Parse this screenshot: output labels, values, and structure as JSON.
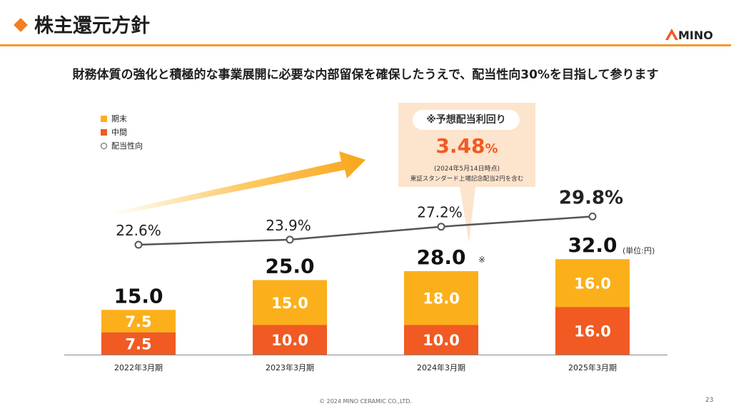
{
  "header": {
    "title": "株主還元方針",
    "logo_text": "MINO"
  },
  "subtitle": "財務体質の強化と積極的な事業展開に必要な内部留保を確保したうえで、配当性向30%を目指して参ります",
  "legend": {
    "final": "期末",
    "interim": "中間",
    "payout": "配当性向"
  },
  "callout": {
    "title": "※予想配当利回り",
    "value": "3.48",
    "value_unit": "%",
    "note_date": "(2024年5月14日時点)",
    "note_detail": "東証スタンダード上場記念配当2円を含む"
  },
  "unit_label": "(単位:円)",
  "colors": {
    "final": "#fbb01b",
    "interim": "#f15a22",
    "line": "#555555",
    "accent": "#f39a2d"
  },
  "chart_data": {
    "type": "bar",
    "stacked": true,
    "categories": [
      "2022年3月期",
      "2023年3月期",
      "2024年3月期",
      "2025年3月期"
    ],
    "series": [
      {
        "name": "中間",
        "values": [
          7.5,
          10.0,
          10.0,
          16.0
        ]
      },
      {
        "name": "期末",
        "values": [
          7.5,
          15.0,
          18.0,
          16.0
        ]
      }
    ],
    "totals": [
      "15.0",
      "25.0",
      "28.0",
      "32.0"
    ],
    "total_notes": [
      "",
      "",
      "※",
      ""
    ],
    "segment_labels": {
      "中間": [
        "7.5",
        "10.0",
        "10.0",
        "16.0"
      ],
      "期末": [
        "7.5",
        "15.0",
        "18.0",
        "16.0"
      ]
    },
    "line": {
      "name": "配当性向",
      "values": [
        22.6,
        23.9,
        27.2,
        29.8
      ],
      "labels": [
        "22.6%",
        "23.9%",
        "27.2%",
        "29.8%"
      ]
    }
  },
  "footer": {
    "copyright": "© 2024 MINO CERAMIC CO.,LTD.",
    "page": "23"
  }
}
